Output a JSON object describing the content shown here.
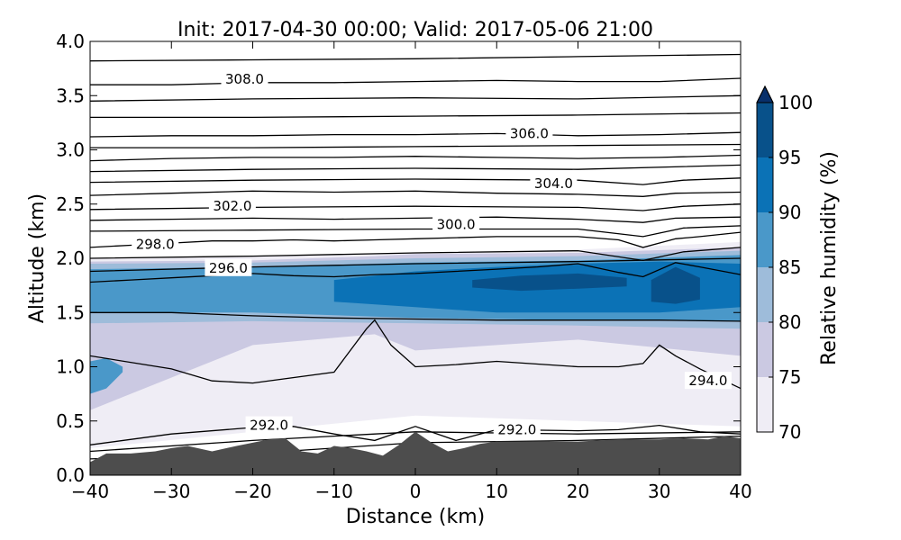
{
  "chart_data": {
    "type": "contour",
    "title": "Init: 2017-04-30 00:00; Valid: 2017-05-06 21:00",
    "xlabel": "Distance (km)",
    "ylabel": "Altitude (km)",
    "xlim": [
      -40,
      40
    ],
    "ylim": [
      0,
      4
    ],
    "x_ticks": [
      -40,
      -30,
      -20,
      -10,
      0,
      10,
      20,
      30,
      40
    ],
    "x_tick_labels": [
      "−40",
      "−30",
      "−20",
      "−10",
      "0",
      "10",
      "20",
      "30",
      "40"
    ],
    "y_ticks": [
      0,
      0.5,
      1,
      1.5,
      2,
      2.5,
      3,
      3.5,
      4
    ],
    "y_tick_labels": [
      "0.0",
      "0.5",
      "1.0",
      "1.5",
      "2.0",
      "2.5",
      "3.0",
      "3.5",
      "4.0"
    ],
    "colorbar": {
      "label": "Relative humidity (%)",
      "levels": [
        70,
        75,
        80,
        85,
        90,
        95,
        100
      ],
      "tick_labels": [
        "70",
        "75",
        "80",
        "85",
        "90",
        "95",
        "100"
      ],
      "colors": [
        "#efedf5",
        "#cbc9e2",
        "#9ebcda",
        "#4a98c9",
        "#0b72b6",
        "#08518a"
      ],
      "extend": "max",
      "extend_color": "#08306b"
    },
    "terrain": {
      "color": "#4d4d4d",
      "x": [
        -40,
        -38,
        -35,
        -32,
        -30,
        -28,
        -25,
        -22,
        -20,
        -18,
        -16,
        -14,
        -12,
        -10,
        -8,
        -6,
        -4,
        -2,
        0,
        2,
        4,
        6,
        8,
        10,
        15,
        20,
        25,
        30,
        33,
        36,
        38,
        40
      ],
      "z": [
        0.12,
        0.2,
        0.2,
        0.22,
        0.25,
        0.27,
        0.22,
        0.27,
        0.3,
        0.33,
        0.34,
        0.22,
        0.2,
        0.27,
        0.25,
        0.22,
        0.18,
        0.28,
        0.4,
        0.3,
        0.22,
        0.25,
        0.29,
        0.31,
        0.31,
        0.31,
        0.33,
        0.33,
        0.34,
        0.33,
        0.36,
        0.34
      ]
    },
    "theta_contours": [
      {
        "level": 292.0,
        "label": "292.0",
        "x": [
          -40,
          -30,
          -20,
          -15,
          -10,
          -5,
          0,
          5,
          10,
          20,
          25,
          30,
          35,
          40
        ],
        "z": [
          0.28,
          0.38,
          0.44,
          0.45,
          0.38,
          0.32,
          0.45,
          0.32,
          0.42,
          0.41,
          0.42,
          0.46,
          0.4,
          0.38
        ]
      },
      {
        "level": 294.0,
        "label": "294.0",
        "x": [
          -40,
          -30,
          -25,
          -20,
          -10,
          -6,
          -5,
          -3,
          0,
          5,
          10,
          20,
          25,
          28,
          30,
          32,
          35,
          40
        ],
        "z": [
          1.1,
          0.98,
          0.87,
          0.85,
          0.95,
          1.35,
          1.43,
          1.2,
          1.0,
          1.02,
          1.05,
          1.0,
          1.0,
          1.03,
          1.2,
          1.1,
          0.98,
          0.8
        ]
      },
      {
        "level": 296.0,
        "label": "296.0",
        "x": [
          -40,
          -35,
          -30,
          -25,
          -20,
          -15,
          -10,
          -5,
          0,
          5,
          10,
          15,
          20,
          25,
          28,
          32,
          35,
          40
        ],
        "z": [
          1.78,
          1.8,
          1.82,
          1.84,
          1.86,
          1.84,
          1.83,
          1.85,
          1.86,
          1.88,
          1.9,
          1.92,
          1.95,
          1.87,
          1.83,
          1.96,
          1.92,
          1.85
        ]
      },
      {
        "level": 298.0,
        "label": "298.0",
        "x": [
          -40,
          -35,
          -30,
          -25,
          -20,
          -15,
          -10,
          -5,
          0,
          5,
          10,
          15,
          20,
          25,
          28,
          32,
          35,
          40
        ],
        "z": [
          2.1,
          2.12,
          2.14,
          2.16,
          2.16,
          2.17,
          2.16,
          2.17,
          2.18,
          2.19,
          2.2,
          2.2,
          2.2,
          2.17,
          2.1,
          2.18,
          2.2,
          2.24
        ]
      },
      {
        "level": 300.0,
        "label": "300.0",
        "x": [
          -40,
          -30,
          -20,
          -10,
          0,
          10,
          20,
          28,
          32,
          40
        ],
        "z": [
          2.35,
          2.36,
          2.37,
          2.36,
          2.37,
          2.38,
          2.36,
          2.33,
          2.37,
          2.38
        ]
      },
      {
        "level": 302.0,
        "label": "302.0",
        "x": [
          -40,
          -30,
          -20,
          -10,
          0,
          10,
          20,
          28,
          32,
          40
        ],
        "z": [
          2.58,
          2.6,
          2.62,
          2.61,
          2.62,
          2.6,
          2.59,
          2.57,
          2.6,
          2.61
        ]
      },
      {
        "level": 304.0,
        "label": "304.0",
        "x": [
          -40,
          -30,
          -20,
          -10,
          0,
          10,
          20,
          30,
          40
        ],
        "z": [
          2.9,
          2.92,
          2.93,
          2.93,
          2.94,
          2.93,
          2.92,
          2.93,
          2.95
        ]
      },
      {
        "level": 306.0,
        "label": "306.0",
        "x": [
          -40,
          -30,
          -20,
          -10,
          0,
          10,
          20,
          30,
          40
        ],
        "z": [
          3.12,
          3.13,
          3.13,
          3.14,
          3.14,
          3.15,
          3.13,
          3.14,
          3.16
        ]
      },
      {
        "level": 308.0,
        "label": "308.0",
        "x": [
          -40,
          -30,
          -20,
          -10,
          0,
          10,
          20,
          30,
          40
        ],
        "z": [
          3.6,
          3.6,
          3.62,
          3.62,
          3.63,
          3.64,
          3.63,
          3.63,
          3.66
        ]
      }
    ],
    "theta_extra_lines": [
      {
        "x": [
          -40,
          -20,
          0,
          20,
          40
        ],
        "z": [
          0.15,
          0.2,
          0.3,
          0.32,
          0.36
        ]
      },
      {
        "x": [
          -40,
          -20,
          0,
          20,
          40
        ],
        "z": [
          0.22,
          0.32,
          0.4,
          0.38,
          0.4
        ]
      },
      {
        "x": [
          -40,
          -30,
          -20,
          -10,
          0,
          10,
          20,
          30,
          40
        ],
        "z": [
          1.5,
          1.5,
          1.47,
          1.45,
          1.44,
          1.43,
          1.43,
          1.43,
          1.42
        ]
      },
      {
        "x": [
          -40,
          -20,
          0,
          20,
          40
        ],
        "z": [
          1.88,
          1.92,
          1.95,
          1.97,
          2.0
        ]
      },
      {
        "x": [
          -40,
          -20,
          0,
          20,
          28,
          33,
          40
        ],
        "z": [
          2.0,
          2.02,
          2.05,
          2.07,
          1.98,
          2.06,
          2.1
        ]
      },
      {
        "x": [
          -40,
          -20,
          0,
          20,
          28,
          33,
          40
        ],
        "z": [
          2.25,
          2.26,
          2.27,
          2.27,
          2.2,
          2.28,
          2.3
        ]
      },
      {
        "x": [
          -40,
          -20,
          0,
          20,
          28,
          33,
          40
        ],
        "z": [
          2.45,
          2.47,
          2.48,
          2.47,
          2.44,
          2.48,
          2.5
        ]
      },
      {
        "x": [
          -40,
          -20,
          0,
          20,
          28,
          33,
          40
        ],
        "z": [
          2.7,
          2.72,
          2.73,
          2.72,
          2.68,
          2.72,
          2.74
        ]
      },
      {
        "x": [
          -40,
          -20,
          0,
          20,
          40
        ],
        "z": [
          2.8,
          2.82,
          2.83,
          2.82,
          2.86
        ]
      },
      {
        "x": [
          -40,
          -20,
          0,
          20,
          40
        ],
        "z": [
          3.02,
          3.02,
          3.03,
          3.04,
          3.05
        ]
      },
      {
        "x": [
          -40,
          -20,
          0,
          20,
          40
        ],
        "z": [
          3.3,
          3.3,
          3.31,
          3.32,
          3.34
        ]
      },
      {
        "x": [
          -40,
          -20,
          0,
          20,
          40
        ],
        "z": [
          3.45,
          3.47,
          3.48,
          3.47,
          3.5
        ]
      },
      {
        "x": [
          -40,
          -20,
          0,
          20,
          40
        ],
        "z": [
          3.82,
          3.83,
          3.84,
          3.86,
          3.88
        ]
      }
    ],
    "rh_regions": [
      {
        "level": 70,
        "x": [
          -40,
          -20,
          0,
          20,
          40
        ],
        "z_bottom": [
          0.25,
          0.4,
          0.55,
          0.5,
          0.45
        ],
        "z_top": [
          2.0,
          2.02,
          2.05,
          2.08,
          2.15
        ]
      },
      {
        "level": 75,
        "x": [
          -40,
          -20,
          -5,
          0,
          20,
          40
        ],
        "z_bottom": [
          0.6,
          1.2,
          1.3,
          1.15,
          1.25,
          1.1
        ],
        "z_top": [
          1.97,
          1.98,
          2.02,
          2.04,
          2.05,
          2.1
        ]
      },
      {
        "level": 80,
        "x": [
          -40,
          -20,
          0,
          20,
          40
        ],
        "z_bottom": [
          1.4,
          1.42,
          1.4,
          1.38,
          1.35
        ],
        "z_top": [
          1.95,
          1.96,
          2.0,
          2.02,
          2.07
        ]
      },
      {
        "level": 85,
        "x": [
          -40,
          -20,
          0,
          20,
          40
        ],
        "z_bottom": [
          1.5,
          1.5,
          1.45,
          1.43,
          1.42
        ],
        "z_top": [
          1.9,
          1.92,
          1.96,
          1.98,
          2.03
        ]
      },
      {
        "level": 90,
        "x": [
          -10,
          0,
          10,
          20,
          30,
          40
        ],
        "z_bottom": [
          1.6,
          1.55,
          1.5,
          1.5,
          1.5,
          1.55
        ],
        "z_top": [
          1.8,
          1.88,
          1.92,
          1.95,
          1.97,
          1.95
        ]
      },
      {
        "level": 95,
        "x": [
          7,
          13,
          20,
          26
        ],
        "z_bottom": [
          1.73,
          1.7,
          1.72,
          1.74
        ],
        "z_top": [
          1.8,
          1.84,
          1.86,
          1.82
        ]
      },
      {
        "level": 95,
        "x": [
          29,
          32,
          35
        ],
        "z_bottom": [
          1.6,
          1.58,
          1.62
        ],
        "z_top": [
          1.8,
          1.92,
          1.82
        ]
      },
      {
        "level": 85,
        "x": [
          -40,
          -38,
          -36
        ],
        "z_bottom": [
          0.75,
          0.8,
          0.95
        ],
        "z_top": [
          1.05,
          1.08,
          1.0
        ]
      }
    ],
    "contour_label_positions": [
      {
        "label": "308.0",
        "x": -21,
        "z": 3.65
      },
      {
        "label": "306.0",
        "x": 14,
        "z": 3.15
      },
      {
        "label": "304.0",
        "x": 17,
        "z": 2.69
      },
      {
        "label": "302.0",
        "x": -22.5,
        "z": 2.48
      },
      {
        "label": "300.0",
        "x": 5,
        "z": 2.31
      },
      {
        "label": "298.0",
        "x": -32,
        "z": 2.13
      },
      {
        "label": "296.0",
        "x": -23,
        "z": 1.91
      },
      {
        "label": "294.0",
        "x": 36,
        "z": 0.87
      },
      {
        "label": "292.0",
        "x": -18,
        "z": 0.46
      },
      {
        "label": "292.0",
        "x": 12.5,
        "z": 0.42
      }
    ]
  }
}
